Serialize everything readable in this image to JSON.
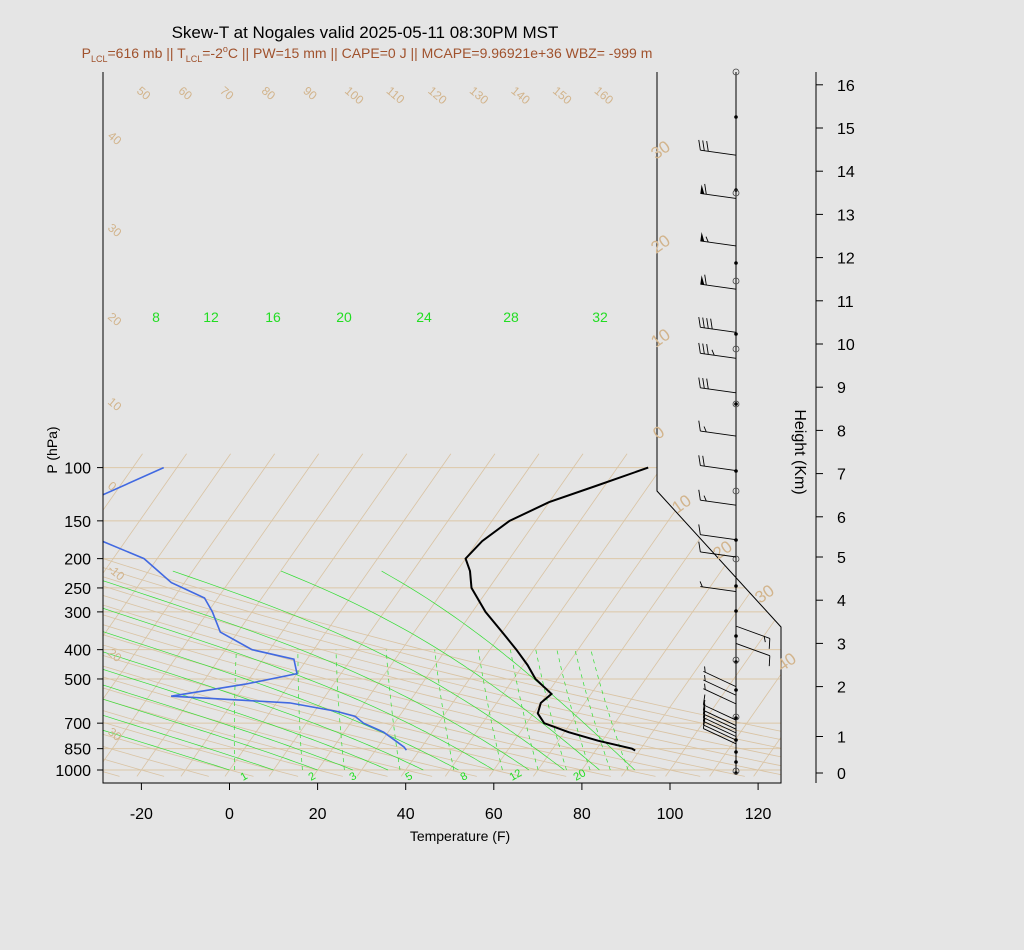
{
  "chart_data": {
    "type": "line",
    "title": "Skew-T at Nogales valid 2025-05-11 08:30PM MST",
    "subtitle": {
      "plcl_value": "=616 mb || T",
      "tlcl_value": "=-2",
      "rest": "C || PW=15 mm || CAPE=0 J || MCAPE=9.96921e+36 WBZ= -999 m"
    },
    "xlabel": "Temperature (F)",
    "ylabel": "P (hPa)",
    "y2label": "Height (Km)",
    "x_ticks": [
      "-20",
      "0",
      "20",
      "40",
      "60",
      "80",
      "100",
      "120"
    ],
    "p_ticks": [
      "100",
      "150",
      "200",
      "250",
      "300",
      "400",
      "500",
      "700",
      "850",
      "1000"
    ],
    "height_ticks": [
      "0",
      "1",
      "2",
      "3",
      "4",
      "5",
      "6",
      "7",
      "8",
      "9",
      "10",
      "11",
      "12",
      "13",
      "14",
      "15",
      "16"
    ],
    "temperature_label_F": [
      -20,
      0,
      20,
      40,
      60,
      80,
      100,
      120
    ],
    "mixing_ratio_labels_top": [
      "8",
      "12",
      "16",
      "20",
      "24",
      "28",
      "32"
    ],
    "mixing_ratio_labels_bottom": [
      "1",
      "2",
      "3",
      "5",
      "8",
      "12",
      "20"
    ],
    "dry_adiabat_labels_top": [
      "50",
      "60",
      "70",
      "80",
      "90",
      "100",
      "110",
      "120",
      "130",
      "140",
      "150",
      "160"
    ],
    "dry_adiabat_labels_left": [
      "40",
      "30",
      "20",
      "10",
      "0",
      "-10",
      "20",
      "30"
    ],
    "dry_adiabat_labels_right": [
      "30",
      "20",
      "10",
      "0",
      "10",
      "20",
      "30",
      "40"
    ],
    "series": [
      {
        "name": "Temperature",
        "color": "#000000",
        "points": [
          [
            862,
            89
          ],
          [
            850,
            88
          ],
          [
            800,
            79
          ],
          [
            750,
            71
          ],
          [
            700,
            64
          ],
          [
            650,
            61
          ],
          [
            600,
            60
          ],
          [
            560,
            61
          ],
          [
            500,
            55
          ],
          [
            450,
            51
          ],
          [
            400,
            46
          ],
          [
            350,
            40
          ],
          [
            300,
            33
          ],
          [
            250,
            26
          ],
          [
            220,
            23
          ],
          [
            200,
            20
          ],
          [
            175,
            21
          ],
          [
            150,
            24
          ],
          [
            130,
            30
          ],
          [
            115,
            38
          ],
          [
            100,
            47
          ]
        ]
      },
      {
        "name": "Dewpoint",
        "color": "#4169e1",
        "points": [
          [
            860,
            37
          ],
          [
            840,
            36
          ],
          [
            800,
            33
          ],
          [
            750,
            29
          ],
          [
            700,
            23
          ],
          [
            665,
            20
          ],
          [
            640,
            15
          ],
          [
            600,
            3
          ],
          [
            570,
            -25
          ],
          [
            520,
            -10
          ],
          [
            480,
            0
          ],
          [
            430,
            -3
          ],
          [
            400,
            -14
          ],
          [
            350,
            -24
          ],
          [
            300,
            -29
          ],
          [
            270,
            -33
          ],
          [
            240,
            -43
          ],
          [
            200,
            -53
          ],
          [
            170,
            -68
          ],
          [
            130,
            -75
          ],
          [
            100,
            -63
          ]
        ]
      }
    ],
    "wind_barbs": [
      {
        "h": 0.8,
        "spd": 10
      },
      {
        "h": 0.9,
        "spd": 10
      },
      {
        "h": 1.0,
        "spd": 10
      },
      {
        "h": 1.1,
        "spd": 10
      },
      {
        "h": 1.2,
        "spd": 10
      },
      {
        "h": 1.3,
        "spd": 10
      },
      {
        "h": 1.45,
        "spd": 10
      },
      {
        "h": 1.6,
        "spd": 5
      },
      {
        "h": 1.8,
        "spd": 5
      },
      {
        "h": 2.0,
        "spd": 5
      },
      {
        "h": 3.0,
        "spd": 10
      },
      {
        "h": 3.4,
        "spd": 15
      },
      {
        "h": 4.2,
        "spd": 5
      },
      {
        "h": 5.0,
        "spd": 10
      },
      {
        "h": 5.4,
        "spd": 10
      },
      {
        "h": 6.2,
        "spd": 15
      },
      {
        "h": 7.0,
        "spd": 20
      },
      {
        "h": 7.8,
        "spd": 15
      },
      {
        "h": 8.8,
        "spd": 30
      },
      {
        "h": 9.6,
        "spd": 35
      },
      {
        "h": 10.2,
        "spd": 40
      },
      {
        "h": 11.2,
        "spd": 60
      },
      {
        "h": 12.2,
        "spd": 55
      },
      {
        "h": 13.3,
        "spd": 60
      },
      {
        "h": 14.3,
        "spd": 30
      }
    ]
  }
}
